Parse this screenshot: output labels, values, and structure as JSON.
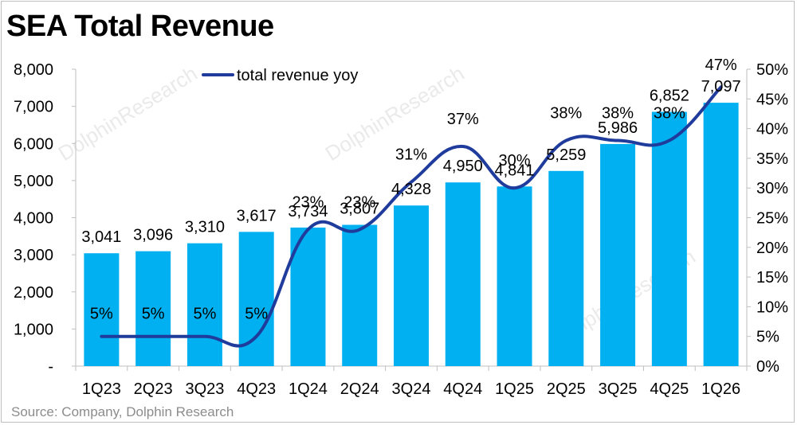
{
  "title": "SEA Total Revenue",
  "source": "Source: Company, Dolphin Research",
  "chart_data": {
    "type": "bar",
    "title": "SEA Total Revenue",
    "categories": [
      "1Q23",
      "2Q23",
      "3Q23",
      "4Q23",
      "1Q24",
      "2Q24",
      "3Q24",
      "4Q24",
      "1Q25",
      "2Q25",
      "3Q25",
      "4Q25",
      "1Q26"
    ],
    "series": [
      {
        "type": "bar",
        "axis": "left",
        "color": "#00b0f0",
        "values": [
          3041,
          3096,
          3310,
          3617,
          3734,
          3807,
          4328,
          4950,
          4841,
          5259,
          5986,
          6852,
          7097
        ],
        "labels": [
          "3,041",
          "3,096",
          "3,310",
          "3,617",
          "3,734",
          "3,807",
          "4,328",
          "4,950",
          "4,841",
          "5,259",
          "5,986",
          "6,852",
          "7,097"
        ]
      },
      {
        "name": "total revenue yoy",
        "type": "line",
        "axis": "right",
        "color": "#1f3b9c",
        "values": [
          0.05,
          0.05,
          0.05,
          0.05,
          0.23,
          0.23,
          0.31,
          0.37,
          0.3,
          0.38,
          0.38,
          0.38,
          0.47
        ],
        "labels": [
          "5%",
          "5%",
          "5%",
          "5%",
          "23%",
          "23%",
          "31%",
          "37%",
          "30%",
          "38%",
          "38%",
          "38%",
          "47%"
        ]
      }
    ],
    "ylim": [
      0,
      8000
    ],
    "y_ticks": [
      "-",
      "1,000",
      "2,000",
      "3,000",
      "4,000",
      "5,000",
      "6,000",
      "7,000",
      "8,000"
    ],
    "y2lim": [
      0,
      0.5
    ],
    "y2_ticks": [
      "0%",
      "5%",
      "10%",
      "15%",
      "20%",
      "25%",
      "30%",
      "35%",
      "40%",
      "45%",
      "50%"
    ],
    "legend": {
      "position": "top-left",
      "label": "total revenue yoy"
    },
    "watermark": "DolphinResearch",
    "grid": false
  }
}
